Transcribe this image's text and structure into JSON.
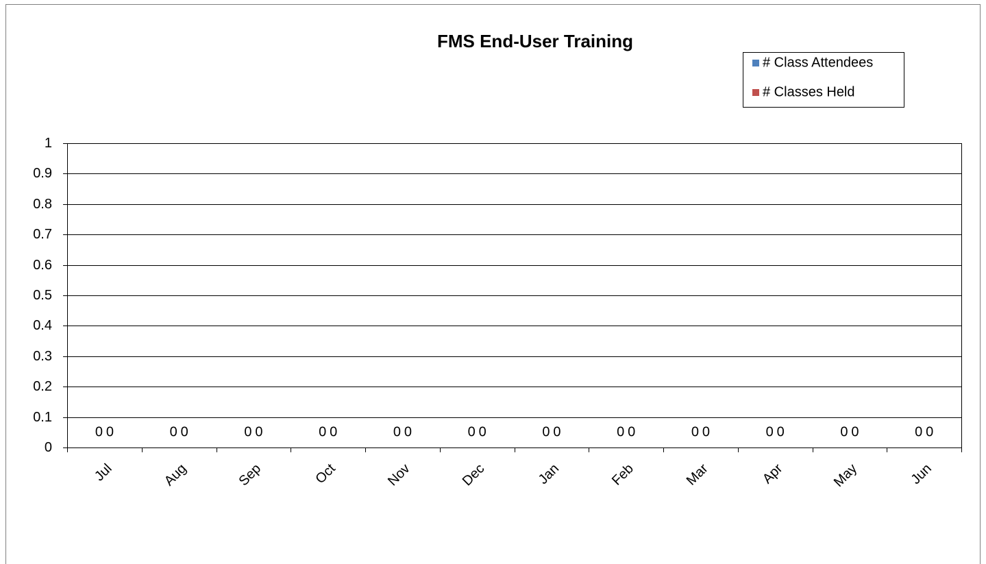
{
  "chart_data": {
    "type": "bar",
    "title": "FMS End-User Training",
    "categories": [
      "Jul",
      "Aug",
      "Sep",
      "Oct",
      "Nov",
      "Dec",
      "Jan",
      "Feb",
      "Mar",
      "Apr",
      "May",
      "Jun"
    ],
    "series": [
      {
        "name": "# Class Attendees",
        "color": "#4f81bd",
        "values": [
          0,
          0,
          0,
          0,
          0,
          0,
          0,
          0,
          0,
          0,
          0,
          0
        ]
      },
      {
        "name": "# Classes Held",
        "color": "#c0504d",
        "values": [
          0,
          0,
          0,
          0,
          0,
          0,
          0,
          0,
          0,
          0,
          0,
          0
        ]
      }
    ],
    "ylim": [
      0,
      1
    ],
    "yticks": [
      0,
      0.1,
      0.2,
      0.3,
      0.4,
      0.5,
      0.6,
      0.7,
      0.8,
      0.9,
      1
    ],
    "grid": true,
    "legend": "top-right",
    "data_labels": true
  }
}
